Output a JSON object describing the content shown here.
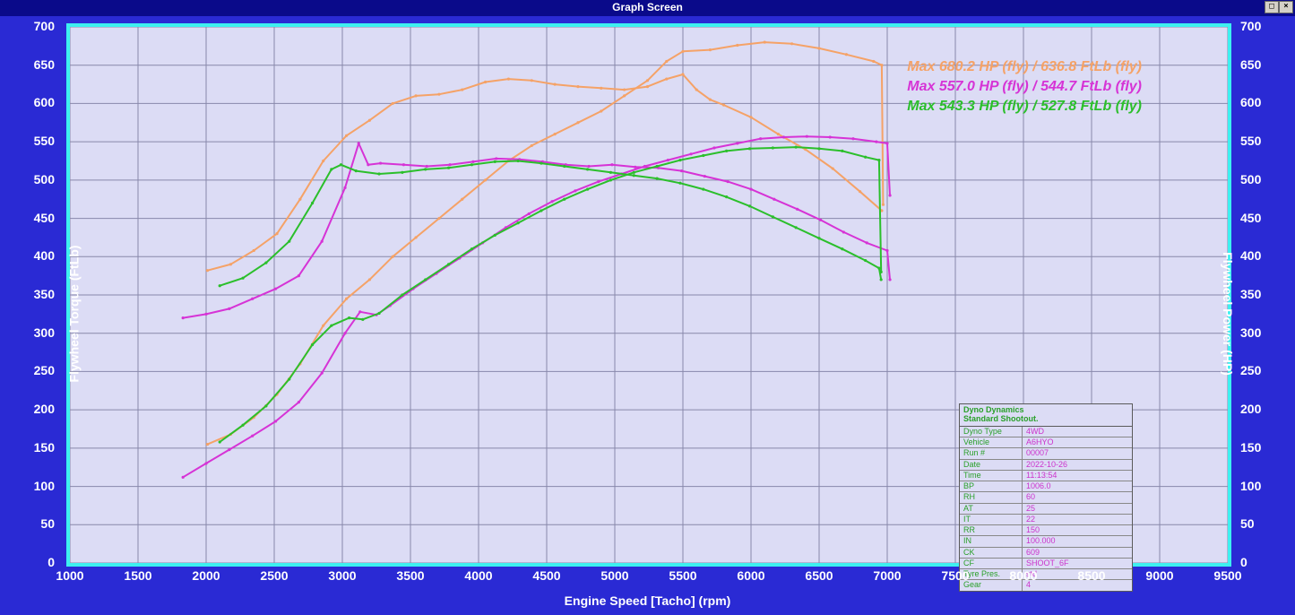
{
  "window": {
    "title": "Graph Screen"
  },
  "chart": {
    "type": "line",
    "background_color": "#dcdcf5",
    "plot_border_color": "#3df0f0",
    "grid_color": "#8888aa",
    "outer_bg": "#2a2ad4",
    "x_axis": {
      "label": "Engine Speed [Tacho] (rpm)",
      "min": 1000,
      "max": 9500,
      "step": 500
    },
    "y_left": {
      "label": "Flywheel Torque (FtLb)",
      "min": 0,
      "max": 700,
      "step": 50
    },
    "y_right": {
      "label": "Flywheel Power (HP)",
      "min": 0,
      "max": 700,
      "step": 50
    },
    "axis_color": "#ffffff",
    "axis_font_weight": "bold",
    "axis_fontsize": 14,
    "legend": [
      {
        "text": "Max 680.2 HP (fly) / 636.8 FtLb (fly)",
        "color": "#f5a267"
      },
      {
        "text": "Max 557.0 HP (fly) / 544.7 FtLb (fly)",
        "color": "#d633d6"
      },
      {
        "text": "Max 543.3 HP (fly) / 527.8 FtLb (fly)",
        "color": "#2bbf2b"
      }
    ],
    "legend_fontsize": 16,
    "legend_fontstyle": "italic",
    "series": {
      "orange_torque": {
        "color": "#f5a267",
        "width": 2,
        "points": [
          [
            2010,
            382
          ],
          [
            2180,
            390
          ],
          [
            2350,
            408
          ],
          [
            2520,
            430
          ],
          [
            2690,
            475
          ],
          [
            2860,
            525
          ],
          [
            3030,
            558
          ],
          [
            3200,
            578
          ],
          [
            3370,
            600
          ],
          [
            3540,
            610
          ],
          [
            3710,
            612
          ],
          [
            3880,
            618
          ],
          [
            4050,
            628
          ],
          [
            4220,
            632
          ],
          [
            4390,
            630
          ],
          [
            4560,
            625
          ],
          [
            4730,
            622
          ],
          [
            4900,
            620
          ],
          [
            5070,
            618
          ],
          [
            5240,
            622
          ],
          [
            5380,
            632
          ],
          [
            5500,
            638
          ],
          [
            5600,
            618
          ],
          [
            5700,
            605
          ],
          [
            5800,
            598
          ],
          [
            6000,
            582
          ],
          [
            6200,
            560
          ],
          [
            6400,
            540
          ],
          [
            6600,
            515
          ],
          [
            6800,
            485
          ],
          [
            6960,
            460
          ]
        ]
      },
      "orange_power": {
        "color": "#f5a267",
        "width": 2,
        "points": [
          [
            2010,
            155
          ],
          [
            2180,
            168
          ],
          [
            2350,
            190
          ],
          [
            2520,
            220
          ],
          [
            2690,
            260
          ],
          [
            2860,
            310
          ],
          [
            3030,
            345
          ],
          [
            3200,
            370
          ],
          [
            3370,
            400
          ],
          [
            3540,
            425
          ],
          [
            3710,
            450
          ],
          [
            3880,
            475
          ],
          [
            4050,
            500
          ],
          [
            4220,
            525
          ],
          [
            4390,
            545
          ],
          [
            4560,
            560
          ],
          [
            4730,
            575
          ],
          [
            4900,
            590
          ],
          [
            5070,
            610
          ],
          [
            5240,
            630
          ],
          [
            5380,
            655
          ],
          [
            5500,
            668
          ],
          [
            5700,
            670
          ],
          [
            5900,
            676
          ],
          [
            6100,
            680
          ],
          [
            6300,
            678
          ],
          [
            6500,
            672
          ],
          [
            6700,
            664
          ],
          [
            6900,
            655
          ],
          [
            6960,
            650
          ],
          [
            6970,
            468
          ]
        ]
      },
      "magenta_torque": {
        "color": "#d633d6",
        "width": 2,
        "points": [
          [
            1830,
            320
          ],
          [
            2000,
            325
          ],
          [
            2170,
            332
          ],
          [
            2340,
            345
          ],
          [
            2510,
            358
          ],
          [
            2680,
            375
          ],
          [
            2850,
            420
          ],
          [
            3020,
            490
          ],
          [
            3120,
            548
          ],
          [
            3190,
            520
          ],
          [
            3280,
            522
          ],
          [
            3450,
            520
          ],
          [
            3620,
            518
          ],
          [
            3790,
            520
          ],
          [
            3960,
            524
          ],
          [
            4130,
            528
          ],
          [
            4300,
            527
          ],
          [
            4470,
            524
          ],
          [
            4640,
            520
          ],
          [
            4810,
            518
          ],
          [
            4980,
            520
          ],
          [
            5150,
            517
          ],
          [
            5320,
            516
          ],
          [
            5490,
            512
          ],
          [
            5660,
            505
          ],
          [
            5830,
            498
          ],
          [
            6000,
            488
          ],
          [
            6170,
            475
          ],
          [
            6340,
            462
          ],
          [
            6510,
            448
          ],
          [
            6680,
            432
          ],
          [
            6850,
            418
          ],
          [
            7000,
            408
          ],
          [
            7020,
            370
          ]
        ]
      },
      "magenta_power": {
        "color": "#d633d6",
        "width": 2,
        "points": [
          [
            1830,
            112
          ],
          [
            2000,
            130
          ],
          [
            2170,
            148
          ],
          [
            2340,
            166
          ],
          [
            2510,
            185
          ],
          [
            2680,
            210
          ],
          [
            2850,
            248
          ],
          [
            3020,
            300
          ],
          [
            3130,
            328
          ],
          [
            3250,
            324
          ],
          [
            3350,
            336
          ],
          [
            3520,
            358
          ],
          [
            3690,
            378
          ],
          [
            3860,
            398
          ],
          [
            4030,
            418
          ],
          [
            4200,
            438
          ],
          [
            4370,
            456
          ],
          [
            4540,
            472
          ],
          [
            4710,
            486
          ],
          [
            4880,
            498
          ],
          [
            5050,
            508
          ],
          [
            5220,
            518
          ],
          [
            5390,
            526
          ],
          [
            5560,
            534
          ],
          [
            5730,
            542
          ],
          [
            5900,
            548
          ],
          [
            6070,
            554
          ],
          [
            6240,
            556
          ],
          [
            6410,
            557
          ],
          [
            6580,
            556
          ],
          [
            6750,
            554
          ],
          [
            6920,
            550
          ],
          [
            7000,
            548
          ],
          [
            7020,
            480
          ]
        ]
      },
      "green_torque": {
        "color": "#2bbf2b",
        "width": 2,
        "points": [
          [
            2100,
            362
          ],
          [
            2270,
            372
          ],
          [
            2440,
            392
          ],
          [
            2610,
            420
          ],
          [
            2780,
            470
          ],
          [
            2920,
            514
          ],
          [
            2990,
            520
          ],
          [
            3100,
            512
          ],
          [
            3270,
            508
          ],
          [
            3440,
            510
          ],
          [
            3610,
            514
          ],
          [
            3780,
            516
          ],
          [
            3950,
            520
          ],
          [
            4120,
            524
          ],
          [
            4290,
            525
          ],
          [
            4460,
            522
          ],
          [
            4630,
            518
          ],
          [
            4800,
            514
          ],
          [
            4970,
            510
          ],
          [
            5140,
            506
          ],
          [
            5310,
            502
          ],
          [
            5480,
            496
          ],
          [
            5650,
            488
          ],
          [
            5820,
            478
          ],
          [
            5990,
            466
          ],
          [
            6160,
            452
          ],
          [
            6330,
            438
          ],
          [
            6500,
            424
          ],
          [
            6670,
            410
          ],
          [
            6840,
            395
          ],
          [
            6940,
            385
          ],
          [
            6955,
            370
          ]
        ]
      },
      "green_power": {
        "color": "#2bbf2b",
        "width": 2,
        "points": [
          [
            2100,
            158
          ],
          [
            2270,
            180
          ],
          [
            2440,
            205
          ],
          [
            2610,
            240
          ],
          [
            2780,
            285
          ],
          [
            2920,
            310
          ],
          [
            3050,
            320
          ],
          [
            3150,
            318
          ],
          [
            3270,
            326
          ],
          [
            3440,
            350
          ],
          [
            3610,
            370
          ],
          [
            3780,
            390
          ],
          [
            3950,
            410
          ],
          [
            4120,
            428
          ],
          [
            4290,
            444
          ],
          [
            4460,
            460
          ],
          [
            4630,
            475
          ],
          [
            4800,
            488
          ],
          [
            4970,
            500
          ],
          [
            5140,
            510
          ],
          [
            5310,
            518
          ],
          [
            5480,
            526
          ],
          [
            5650,
            532
          ],
          [
            5820,
            538
          ],
          [
            5990,
            541
          ],
          [
            6160,
            542
          ],
          [
            6330,
            543
          ],
          [
            6500,
            541
          ],
          [
            6670,
            538
          ],
          [
            6840,
            530
          ],
          [
            6940,
            526
          ],
          [
            6955,
            380
          ]
        ]
      }
    }
  },
  "info_box": {
    "title_line1": "Dyno Dynamics",
    "title_line2": "Standard Shootout.",
    "rows": [
      {
        "k": "Dyno Type",
        "v": "4WD"
      },
      {
        "k": "Vehicle",
        "v": "A6HYO"
      },
      {
        "k": "Run #",
        "v": "00007"
      },
      {
        "k": "Date",
        "v": "2022-10-26"
      },
      {
        "k": "Time",
        "v": "11:13:54"
      },
      {
        "k": "BP",
        "v": "1006.0"
      },
      {
        "k": "RH",
        "v": "60"
      },
      {
        "k": "AT",
        "v": "25"
      },
      {
        "k": "IT",
        "v": "22"
      },
      {
        "k": "RR",
        "v": "150"
      },
      {
        "k": "IN",
        "v": "100.000"
      },
      {
        "k": "CK",
        "v": "609"
      },
      {
        "k": "CF",
        "v": "SHOOT_6F"
      },
      {
        "k": "Tyre Pres.",
        "v": "std"
      },
      {
        "k": "Gear",
        "v": "4"
      }
    ]
  }
}
